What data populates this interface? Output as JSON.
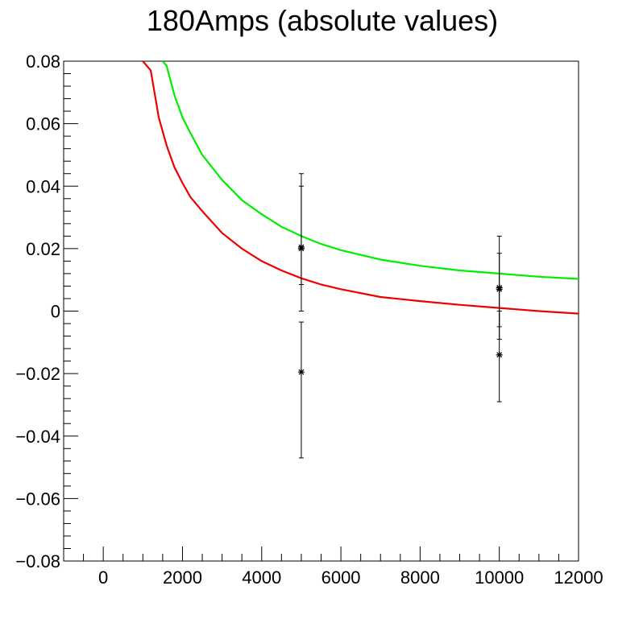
{
  "chart_data": {
    "type": "scatter",
    "title": "180Amps (absolute values)",
    "xlabel": "",
    "ylabel": "",
    "xlim": [
      -1000,
      12000
    ],
    "ylim": [
      -0.08,
      0.08
    ],
    "x_ticks": [
      0,
      2000,
      4000,
      6000,
      8000,
      10000,
      12000
    ],
    "x_tick_labels": [
      "0",
      "2000",
      "4000",
      "6000",
      "8000",
      "10000",
      "12000"
    ],
    "y_ticks": [
      0.08,
      0.06,
      0.04,
      0.02,
      0,
      -0.02,
      -0.04,
      -0.06,
      -0.08
    ],
    "y_tick_labels": [
      "0.08",
      "0.06",
      "0.04",
      "0.02",
      "0",
      "−0.02",
      "−0.04",
      "−0.06",
      "−0.08"
    ],
    "grid": false,
    "points": [
      {
        "x": 5000,
        "y": 0.0205,
        "err_low": 0.0085,
        "err_high": 0.044
      },
      {
        "x": 5000,
        "y": 0.02,
        "err_low": 0.0,
        "err_high": 0.04
      },
      {
        "x": 5000,
        "y": -0.0195,
        "err_low": -0.047,
        "err_high": -0.0035
      },
      {
        "x": 10000,
        "y": 0.0075,
        "err_low": -0.005,
        "err_high": 0.024
      },
      {
        "x": 10000,
        "y": 0.007,
        "err_low": -0.009,
        "err_high": 0.0185
      },
      {
        "x": 10000,
        "y": -0.014,
        "err_low": -0.029,
        "err_high": 0.0
      }
    ],
    "series": [
      {
        "color": "#00ee00",
        "x": [
          1500,
          1600,
          1800,
          2000,
          2200,
          2500,
          3000,
          3500,
          4000,
          4500,
          5000,
          5500,
          6000,
          7000,
          8000,
          9000,
          10000,
          11000,
          12000
        ],
        "y": [
          0.08,
          0.0785,
          0.069,
          0.062,
          0.057,
          0.05,
          0.042,
          0.0355,
          0.031,
          0.027,
          0.024,
          0.0215,
          0.0195,
          0.0165,
          0.0145,
          0.013,
          0.012,
          0.011,
          0.0103
        ]
      },
      {
        "color": "#ee0000",
        "x": [
          1000,
          1200,
          1400,
          1600,
          1800,
          2000,
          2200,
          2500,
          3000,
          3500,
          4000,
          4500,
          5000,
          5500,
          6000,
          7000,
          8000,
          9000,
          10000,
          11000,
          12000
        ],
        "y": [
          0.08,
          0.077,
          0.062,
          0.053,
          0.046,
          0.041,
          0.0365,
          0.032,
          0.025,
          0.02,
          0.016,
          0.013,
          0.0105,
          0.0085,
          0.007,
          0.0045,
          0.0032,
          0.002,
          0.001,
          0.0,
          -0.0008
        ]
      }
    ]
  }
}
